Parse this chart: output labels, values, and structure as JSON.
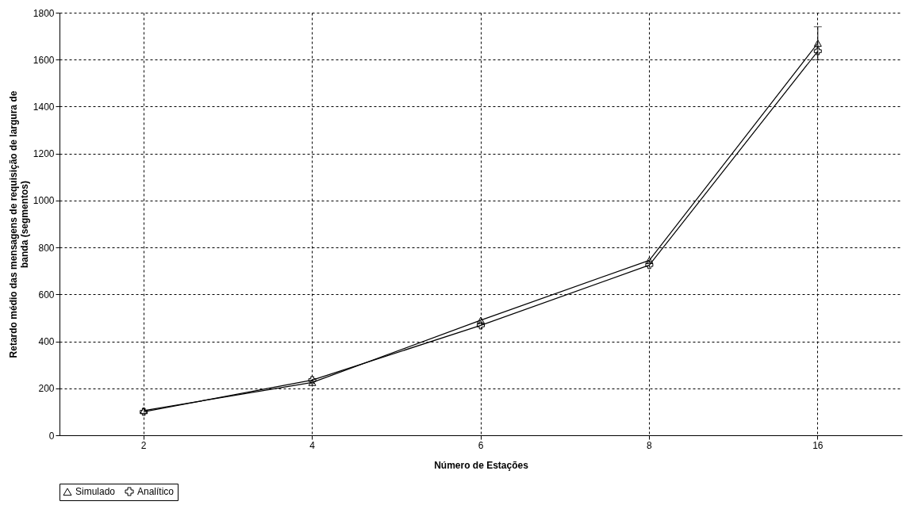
{
  "chart_data": {
    "type": "line",
    "xlabel": "Número de Estações",
    "ylabel": "Retardo médio das mensagens de requisição de largura de banda (segmentos)",
    "categories": [
      "2",
      "4",
      "6",
      "8",
      "16"
    ],
    "series": [
      {
        "name": "Simulado",
        "color": "#000000",
        "marker": "triangle",
        "values": [
          105,
          225,
          490,
          745,
          1670
        ],
        "errors": [
          null,
          null,
          null,
          null,
          70
        ]
      },
      {
        "name": "Analítico",
        "color": "#000000",
        "marker": "cross",
        "values": [
          100,
          235,
          468,
          725,
          1636
        ]
      }
    ],
    "ylim": [
      0,
      1800
    ],
    "yticks": [
      0,
      200,
      400,
      600,
      800,
      1000,
      1200,
      1400,
      1600,
      1800
    ],
    "grid": true,
    "legend": "bottom",
    "line_style": "solid"
  }
}
